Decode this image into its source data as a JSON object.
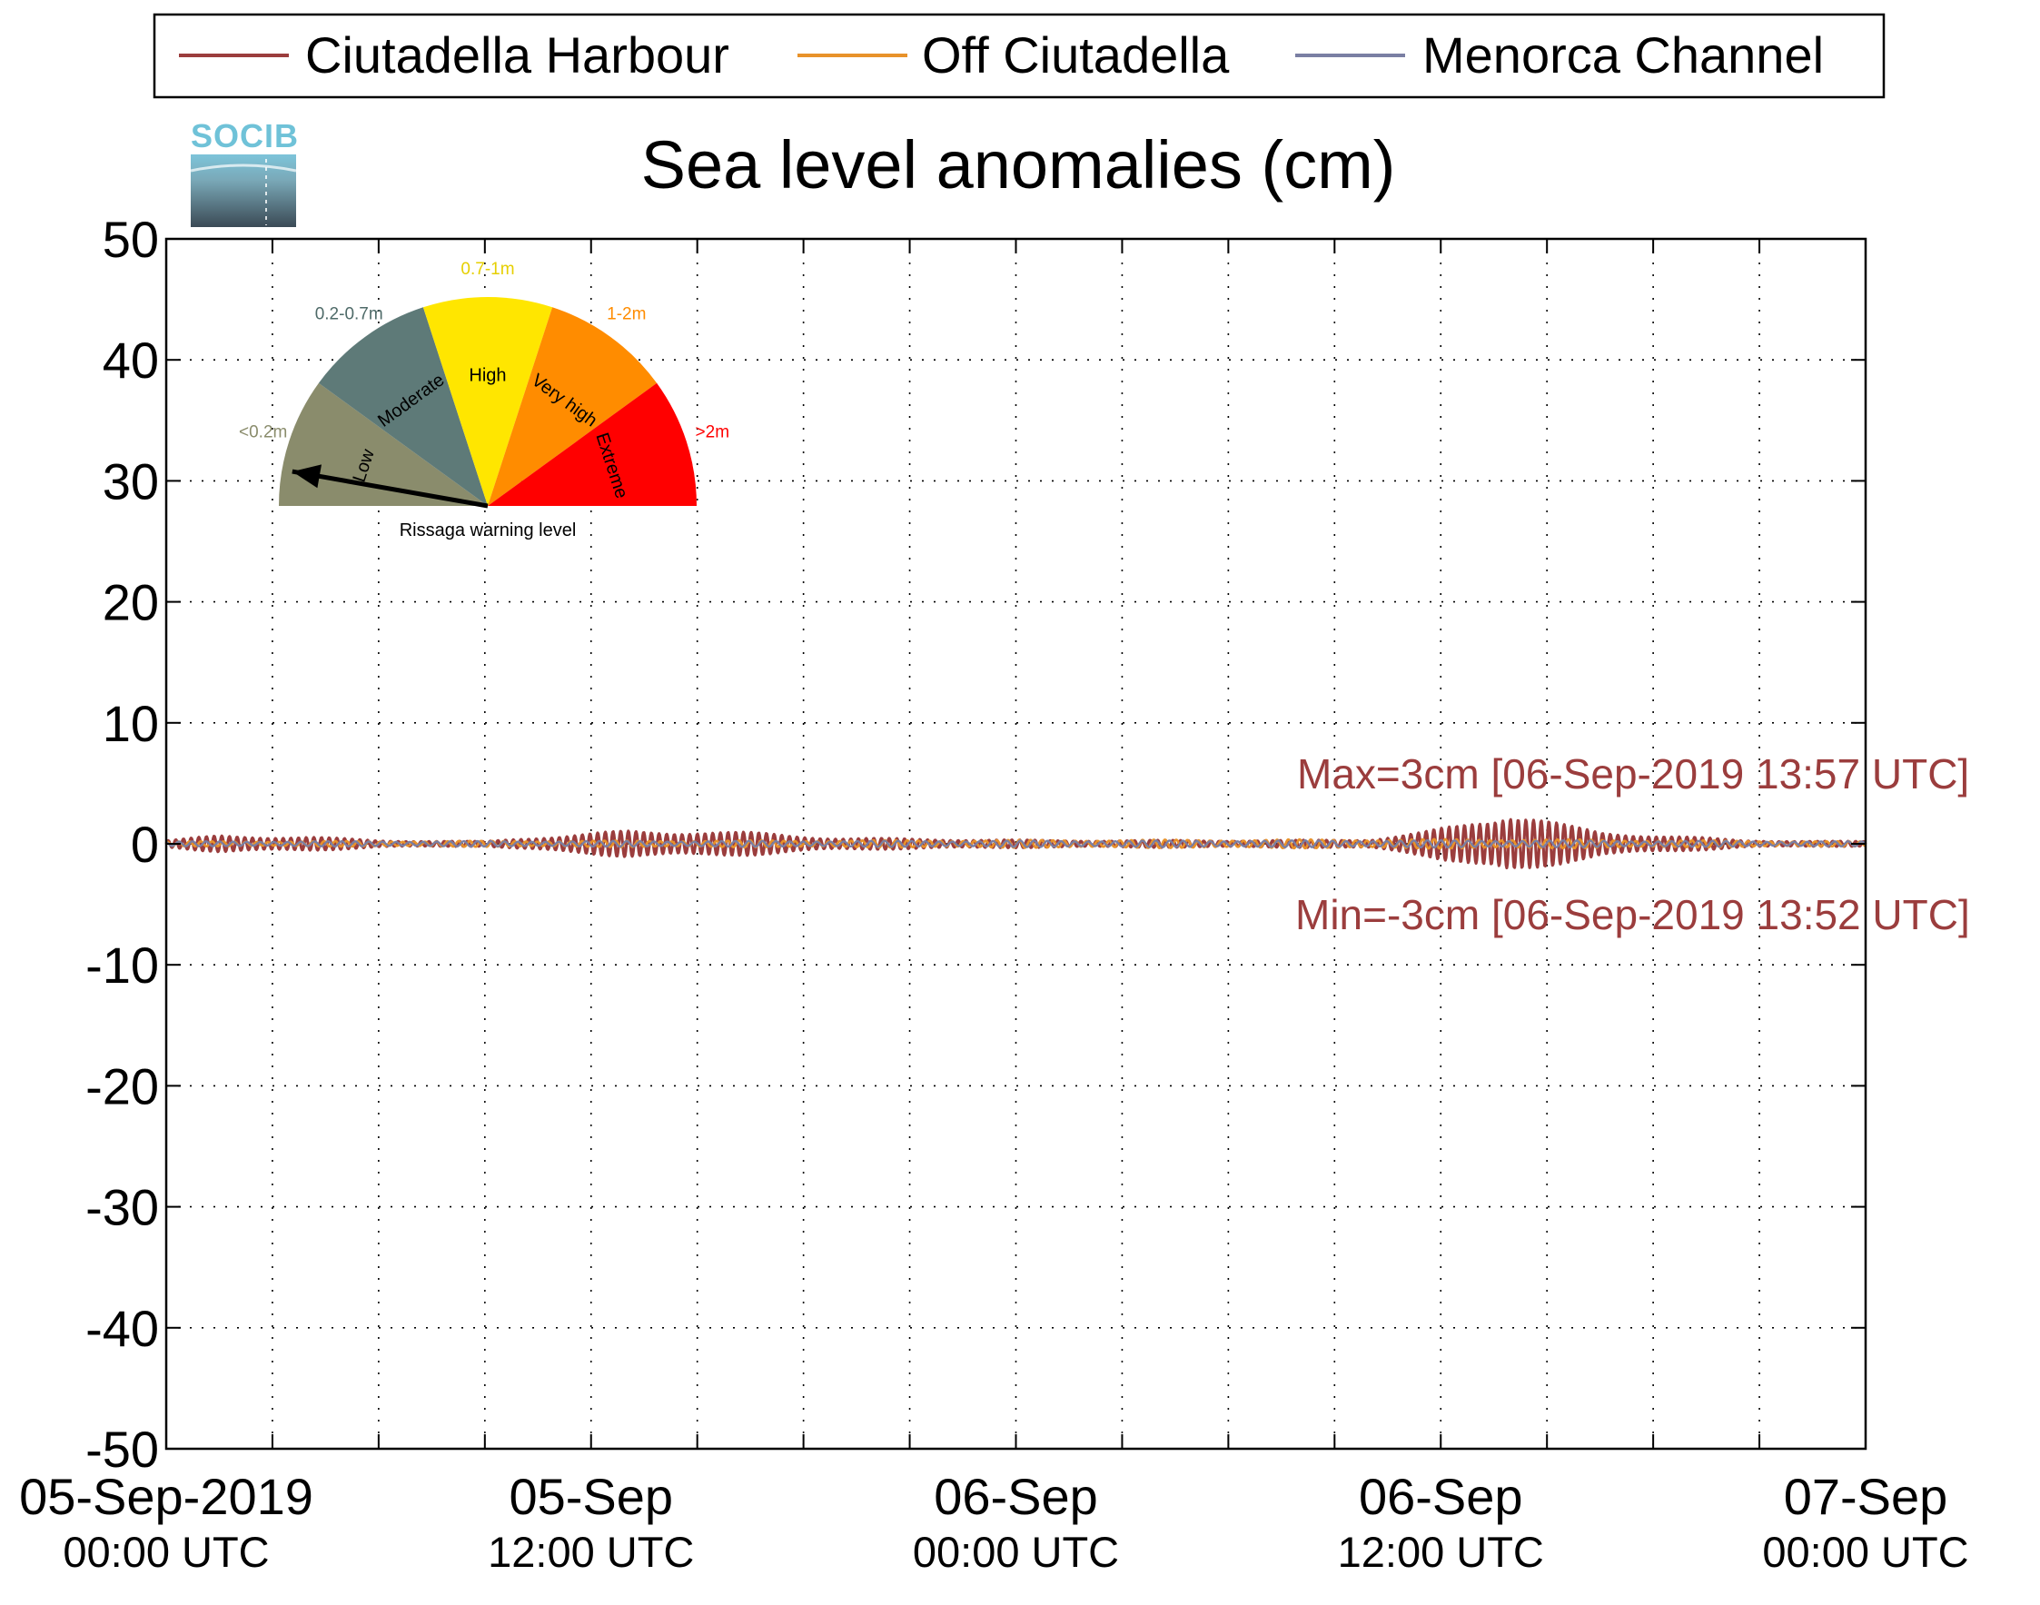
{
  "chart_data": {
    "type": "line",
    "title": "Sea level anomalies (cm)",
    "xlabel": "",
    "ylabel": "",
    "ylim": [
      -50,
      50
    ],
    "yticks": [
      50,
      40,
      30,
      20,
      10,
      0,
      -10,
      -20,
      -30,
      -40,
      -50
    ],
    "yticklabels": [
      "50",
      "40",
      "30",
      "20",
      "10",
      "0",
      "-10",
      "-20",
      "-30",
      "-40",
      "-50"
    ],
    "xlim": [
      "2019-09-05 00:00",
      "2019-09-07 00:00"
    ],
    "xticks": [
      {
        "date": "2019-09-05 00:00",
        "line1": "05-Sep-2019",
        "line2": "00:00 UTC"
      },
      {
        "date": "2019-09-05 12:00",
        "line1": "05-Sep",
        "line2": "12:00 UTC"
      },
      {
        "date": "2019-09-06 00:00",
        "line1": "06-Sep",
        "line2": "00:00 UTC"
      },
      {
        "date": "2019-09-06 12:00",
        "line1": "06-Sep",
        "line2": "12:00 UTC"
      },
      {
        "date": "2019-09-07 00:00",
        "line1": "07-Sep",
        "line2": "00:00 UTC"
      }
    ],
    "grid": true,
    "legend_position": "top",
    "series": [
      {
        "name": "Ciutadella Harbour",
        "color": "#9b3d3d",
        "envelope": [
          {
            "t": "2019-09-05 00:00",
            "amp": 0.3
          },
          {
            "t": "2019-09-05 01:30",
            "amp": 0.7
          },
          {
            "t": "2019-09-05 04:00",
            "amp": 0.6
          },
          {
            "t": "2019-09-05 06:00",
            "amp": 0.3
          },
          {
            "t": "2019-09-05 09:00",
            "amp": 0.2
          },
          {
            "t": "2019-09-05 10:30",
            "amp": 0.6
          },
          {
            "t": "2019-09-05 13:00",
            "amp": 1.1
          },
          {
            "t": "2019-09-05 15:00",
            "amp": 1.1
          },
          {
            "t": "2019-09-05 17:00",
            "amp": 0.9
          },
          {
            "t": "2019-09-05 19:00",
            "amp": 0.5
          },
          {
            "t": "2019-09-05 22:00",
            "amp": 0.4
          },
          {
            "t": "2019-09-06 01:00",
            "amp": 0.3
          },
          {
            "t": "2019-09-06 05:00",
            "amp": 0.3
          },
          {
            "t": "2019-09-06 08:00",
            "amp": 0.3
          },
          {
            "t": "2019-09-06 10:00",
            "amp": 0.4
          },
          {
            "t": "2019-09-06 11:30",
            "amp": 1.0
          },
          {
            "t": "2019-09-06 12:30",
            "amp": 1.6
          },
          {
            "t": "2019-09-06 13:30",
            "amp": 2.4
          },
          {
            "t": "2019-09-06 13:55",
            "amp": 2.9
          },
          {
            "t": "2019-09-06 14:30",
            "amp": 2.5
          },
          {
            "t": "2019-09-06 15:30",
            "amp": 1.6
          },
          {
            "t": "2019-09-06 16:30",
            "amp": 1.0
          },
          {
            "t": "2019-09-06 18:00",
            "amp": 0.8
          },
          {
            "t": "2019-09-06 20:30",
            "amp": 0.3
          },
          {
            "t": "2019-09-07 00:00",
            "amp": 0.2
          }
        ]
      },
      {
        "name": "Off Ciutadella",
        "color": "#e8922a",
        "envelope": [
          {
            "t": "2019-09-05 00:00",
            "amp": 0.2
          },
          {
            "t": "2019-09-06 13:55",
            "amp": 0.4
          },
          {
            "t": "2019-09-07 00:00",
            "amp": 0.2
          }
        ]
      },
      {
        "name": "Menorca Channel",
        "color": "#7a7fa3",
        "envelope": [
          {
            "t": "2019-09-05 00:00",
            "amp": 0.2
          },
          {
            "t": "2019-09-06 13:55",
            "amp": 0.3
          },
          {
            "t": "2019-09-07 00:00",
            "amp": 0.2
          }
        ]
      }
    ],
    "annotations": [
      {
        "text": "Max=3cm [06-Sep-2019 13:57 UTC]",
        "value": 3,
        "color": "#9b3d3d"
      },
      {
        "text": "Min=-3cm [06-Sep-2019 13:52 UTC]",
        "value": -3,
        "color": "#9b3d3d"
      }
    ]
  },
  "logo": {
    "text": "SOCIB"
  },
  "gauge": {
    "caption": "Rissaga warning level",
    "current_level": "Low",
    "sectors": [
      {
        "label": "Low",
        "range": "<0.2m",
        "color": "#8a8c6c",
        "range_color": "#8a8c6c"
      },
      {
        "label": "Moderate",
        "range": "0.2-0.7m",
        "color": "#5e7a78",
        "range_color": "#4e6a68"
      },
      {
        "label": "High",
        "range": "0.7-1m",
        "color": "#ffe600",
        "range_color": "#e6cf00"
      },
      {
        "label": "Very high",
        "range": "1-2m",
        "color": "#ff8c00",
        "range_color": "#ff8c00"
      },
      {
        "label": "Extreme",
        "range": ">2m",
        "color": "#ff0000",
        "range_color": "#ff0000"
      }
    ]
  }
}
